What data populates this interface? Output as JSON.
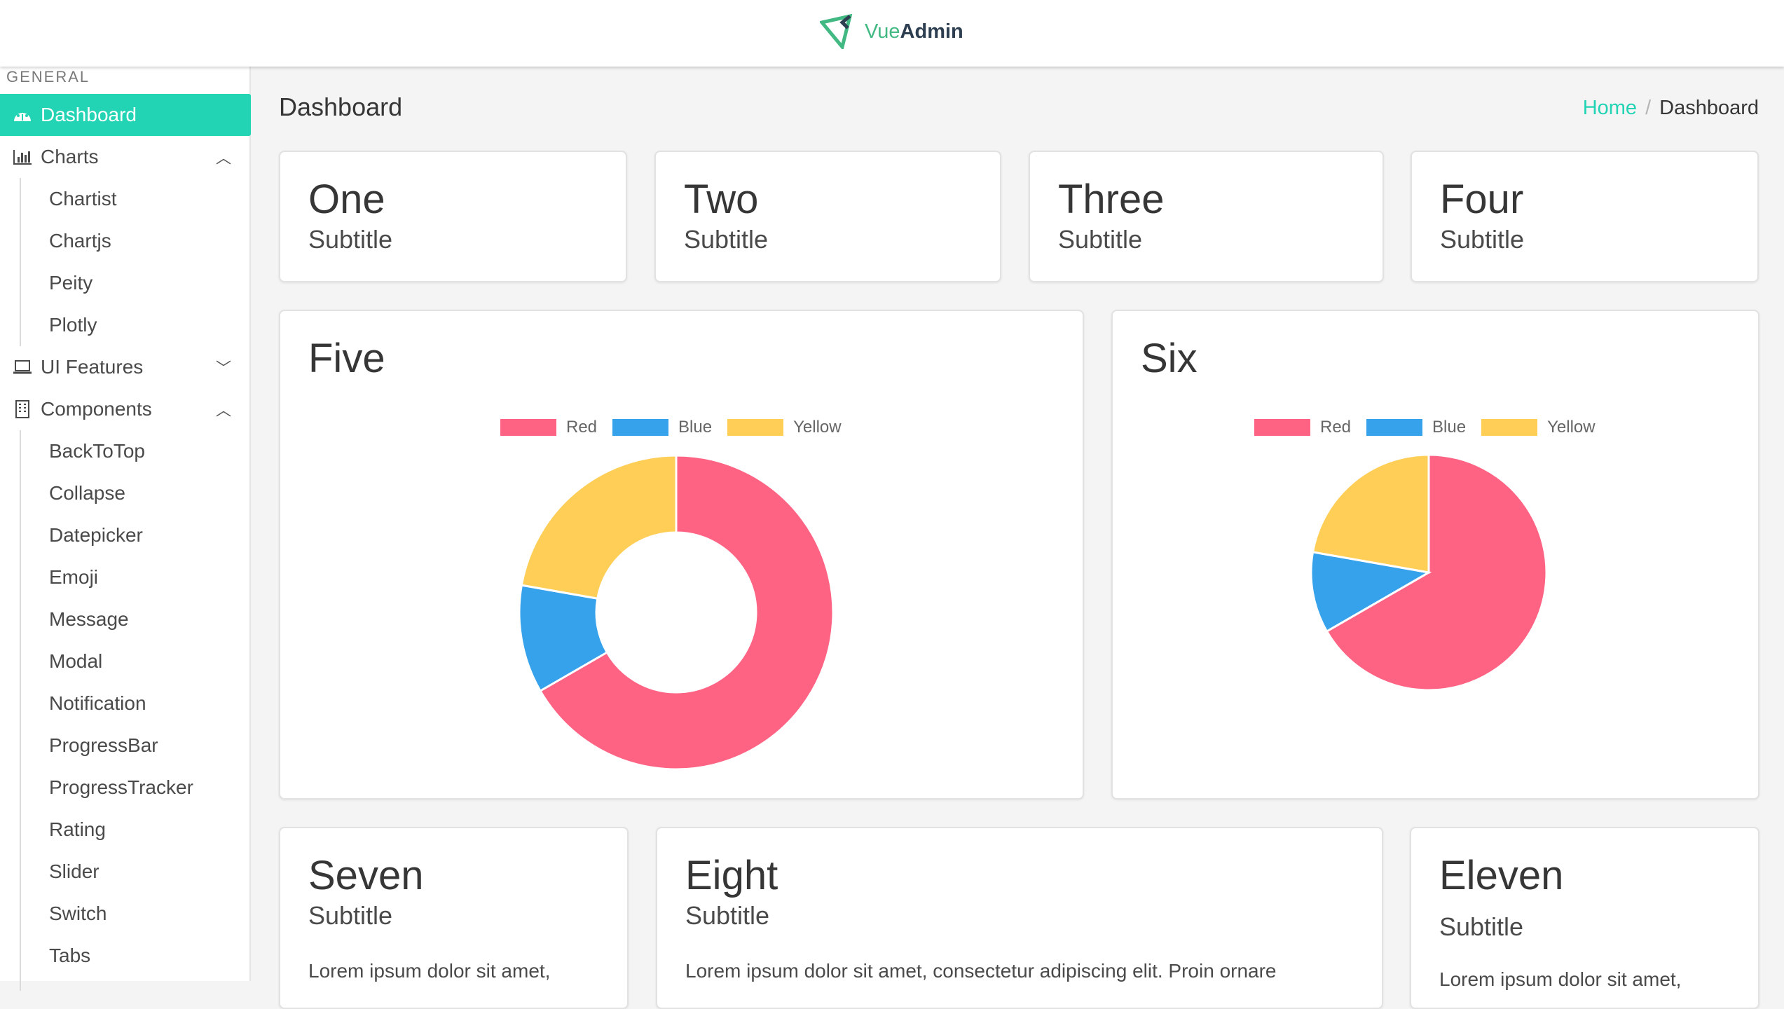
{
  "header": {
    "logo_prefix": "Vue",
    "logo_suffix": "Admin"
  },
  "sidebar": {
    "section": "GENERAL",
    "items": [
      {
        "label": "Dashboard",
        "icon": "dashboard-icon",
        "active": true
      },
      {
        "label": "Charts",
        "icon": "bar-chart-icon",
        "expanded": true,
        "children": [
          "Chartist",
          "Chartjs",
          "Peity",
          "Plotly"
        ]
      },
      {
        "label": "UI Features",
        "icon": "laptop-icon",
        "expanded": false
      },
      {
        "label": "Components",
        "icon": "building-icon",
        "expanded": true,
        "children": [
          "BackToTop",
          "Collapse",
          "Datepicker",
          "Emoji",
          "Message",
          "Modal",
          "Notification",
          "ProgressBar",
          "ProgressTracker",
          "Rating",
          "Slider",
          "Switch",
          "Tabs"
        ]
      }
    ]
  },
  "page": {
    "title": "Dashboard",
    "breadcrumb": [
      "Home",
      "Dashboard"
    ]
  },
  "cards": [
    {
      "title": "One",
      "subtitle": "Subtitle"
    },
    {
      "title": "Two",
      "subtitle": "Subtitle"
    },
    {
      "title": "Three",
      "subtitle": "Subtitle"
    },
    {
      "title": "Four",
      "subtitle": "Subtitle"
    },
    {
      "title": "Five"
    },
    {
      "title": "Six"
    },
    {
      "title": "Seven",
      "subtitle": "Subtitle",
      "text": "Lorem ipsum dolor sit amet,"
    },
    {
      "title": "Eight",
      "subtitle": "Subtitle",
      "text": "Lorem ipsum dolor sit amet, consectetur adipiscing elit. Proin ornare"
    },
    {
      "title": "Eleven",
      "subtitle": "Subtitle",
      "text": "Lorem ipsum dolor sit amet,"
    }
  ],
  "chart_data": [
    {
      "type": "pie",
      "variant": "doughnut",
      "categories": [
        "Red",
        "Blue",
        "Yellow"
      ],
      "values": [
        300,
        50,
        100
      ],
      "colors": [
        "#ff6384",
        "#36a2eb",
        "#ffce56"
      ],
      "legend": "top"
    },
    {
      "type": "pie",
      "categories": [
        "Red",
        "Blue",
        "Yellow"
      ],
      "values": [
        300,
        50,
        100
      ],
      "colors": [
        "#ff6384",
        "#36a2eb",
        "#ffce56"
      ],
      "legend": "top"
    }
  ]
}
